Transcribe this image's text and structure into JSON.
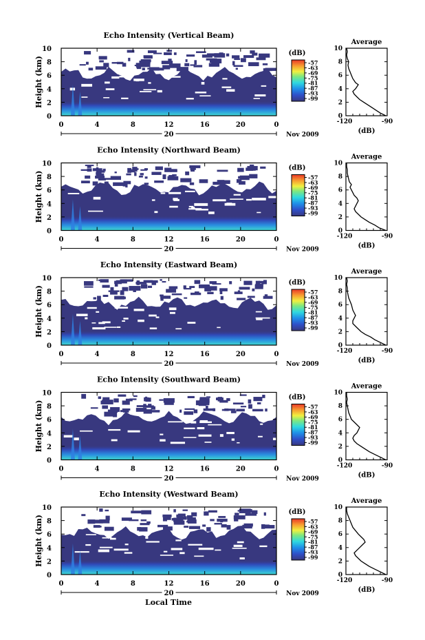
{
  "figure": {
    "xlabel": "Local Time",
    "colors": {
      "background": "#ffffff",
      "navy": "#38387f",
      "axis": "#000000"
    }
  },
  "chart_data": [
    {
      "type": "heatmap",
      "title": "Echo Intensity (Vertical Beam)",
      "ylabel": "Height (km)",
      "x_ticks": [
        "0",
        "4",
        "8",
        "12",
        "16",
        "20",
        "0"
      ],
      "xlim": [
        0,
        24
      ],
      "y_ticks": [
        "0",
        "2",
        "4",
        "6",
        "8",
        "10"
      ],
      "ylim": [
        0,
        10
      ],
      "date_day": "20",
      "date_label": "Nov 2009",
      "colorbar": {
        "unit": "(dB)",
        "ticks": [
          "-57",
          "-63",
          "-69",
          "-75",
          "-81",
          "-87",
          "-93",
          "-99"
        ]
      },
      "profile": {
        "title": "Average",
        "xlabel": "(dB)",
        "x_ticks": [
          "-120",
          "-90"
        ],
        "xlim": [
          -120,
          -90
        ],
        "y_ticks": [
          "0",
          "2",
          "4",
          "6",
          "8",
          "10"
        ],
        "ylim": [
          0,
          10
        ],
        "points": [
          [
            -91,
            0
          ],
          [
            -95,
            0.4
          ],
          [
            -98,
            0.8
          ],
          [
            -101,
            1.2
          ],
          [
            -104,
            1.6
          ],
          [
            -107,
            2.0
          ],
          [
            -110,
            2.4
          ],
          [
            -112,
            2.8
          ],
          [
            -114,
            3.2
          ],
          [
            -115,
            3.6
          ],
          [
            -113,
            4.0
          ],
          [
            -112,
            4.3
          ],
          [
            -111,
            4.6
          ],
          [
            -113,
            4.9
          ],
          [
            -114,
            5.2
          ],
          [
            -115,
            5.5
          ],
          [
            -116,
            6.0
          ],
          [
            -117,
            6.5
          ],
          [
            -118,
            7.0
          ],
          [
            -118.5,
            7.5
          ],
          [
            -118,
            8.0
          ],
          [
            -119,
            8.5
          ],
          [
            -119.5,
            9.0
          ],
          [
            -119,
            9.5
          ],
          [
            -119.5,
            10
          ]
        ]
      }
    },
    {
      "type": "heatmap",
      "title": "Echo Intensity (Northward Beam)",
      "ylabel": "Height (km)",
      "x_ticks": [
        "0",
        "4",
        "8",
        "12",
        "16",
        "20",
        "0"
      ],
      "xlim": [
        0,
        24
      ],
      "y_ticks": [
        "0",
        "2",
        "4",
        "6",
        "8",
        "10"
      ],
      "ylim": [
        0,
        10
      ],
      "date_day": "20",
      "date_label": "Nov 2009",
      "colorbar": {
        "unit": "(dB)",
        "ticks": [
          "-57",
          "-63",
          "-69",
          "-75",
          "-81",
          "-87",
          "-93",
          "-99"
        ]
      },
      "profile": {
        "title": "Average",
        "xlabel": "(dB)",
        "x_ticks": [
          "-120",
          "-90"
        ],
        "xlim": [
          -120,
          -90
        ],
        "y_ticks": [
          "0",
          "2",
          "4",
          "6",
          "8",
          "10"
        ],
        "ylim": [
          0,
          10
        ],
        "points": [
          [
            -91,
            0
          ],
          [
            -96,
            0.4
          ],
          [
            -99,
            0.8
          ],
          [
            -103,
            1.2
          ],
          [
            -106,
            1.6
          ],
          [
            -109,
            2.0
          ],
          [
            -111,
            2.4
          ],
          [
            -113,
            2.8
          ],
          [
            -114,
            3.2
          ],
          [
            -113,
            3.6
          ],
          [
            -112,
            4.0
          ],
          [
            -111,
            4.4
          ],
          [
            -112,
            4.8
          ],
          [
            -114,
            5.2
          ],
          [
            -115,
            5.6
          ],
          [
            -116,
            6.0
          ],
          [
            -117,
            6.4
          ],
          [
            -116,
            6.8
          ],
          [
            -117.5,
            7.2
          ],
          [
            -118,
            7.6
          ],
          [
            -118.5,
            8.0
          ],
          [
            -119,
            8.5
          ],
          [
            -119,
            9.0
          ],
          [
            -119.5,
            9.5
          ],
          [
            -119.5,
            10
          ]
        ]
      }
    },
    {
      "type": "heatmap",
      "title": "Echo Intensity (Eastward Beam)",
      "ylabel": "Height (km)",
      "x_ticks": [
        "0",
        "4",
        "8",
        "12",
        "16",
        "20",
        "0"
      ],
      "xlim": [
        0,
        24
      ],
      "y_ticks": [
        "0",
        "2",
        "4",
        "6",
        "8",
        "10"
      ],
      "ylim": [
        0,
        10
      ],
      "date_day": "20",
      "date_label": "Nov 2009",
      "colorbar": {
        "unit": "(dB)",
        "ticks": [
          "-57",
          "-63",
          "-69",
          "-75",
          "-81",
          "-87",
          "-93",
          "-99"
        ]
      },
      "profile": {
        "title": "Average",
        "xlabel": "(dB)",
        "x_ticks": [
          "-120",
          "-90"
        ],
        "xlim": [
          -120,
          -90
        ],
        "y_ticks": [
          "0",
          "2",
          "4",
          "6",
          "8",
          "10"
        ],
        "ylim": [
          0,
          10
        ],
        "points": [
          [
            -91,
            0
          ],
          [
            -95,
            0.4
          ],
          [
            -99,
            0.8
          ],
          [
            -102,
            1.2
          ],
          [
            -106,
            1.6
          ],
          [
            -109,
            2.0
          ],
          [
            -111,
            2.4
          ],
          [
            -113,
            2.8
          ],
          [
            -115,
            3.2
          ],
          [
            -115,
            3.6
          ],
          [
            -114,
            4.0
          ],
          [
            -113,
            4.4
          ],
          [
            -114,
            4.8
          ],
          [
            -115,
            5.2
          ],
          [
            -115.5,
            5.6
          ],
          [
            -116,
            6.0
          ],
          [
            -117,
            6.5
          ],
          [
            -118,
            7.0
          ],
          [
            -118.5,
            7.5
          ],
          [
            -119,
            8.0
          ],
          [
            -119,
            8.5
          ],
          [
            -119.5,
            9.0
          ],
          [
            -119,
            9.5
          ],
          [
            -119.5,
            10
          ]
        ]
      }
    },
    {
      "type": "heatmap",
      "title": "Echo Intensity (Southward Beam)",
      "ylabel": "Height (km)",
      "x_ticks": [
        "0",
        "4",
        "8",
        "12",
        "16",
        "20",
        "0"
      ],
      "xlim": [
        0,
        24
      ],
      "y_ticks": [
        "0",
        "2",
        "4",
        "6",
        "8",
        "10"
      ],
      "ylim": [
        0,
        10
      ],
      "date_day": "20",
      "date_label": "Nov 2009",
      "colorbar": {
        "unit": "(dB)",
        "ticks": [
          "-57",
          "-63",
          "-69",
          "-75",
          "-81",
          "-87",
          "-93",
          "-99"
        ]
      },
      "profile": {
        "title": "Average",
        "xlabel": "(dB)",
        "x_ticks": [
          "-120",
          "-90"
        ],
        "xlim": [
          -120,
          -90
        ],
        "y_ticks": [
          "0",
          "2",
          "4",
          "6",
          "8",
          "10"
        ],
        "ylim": [
          0,
          10
        ],
        "points": [
          [
            -91,
            0
          ],
          [
            -95,
            0.4
          ],
          [
            -99,
            0.8
          ],
          [
            -103,
            1.2
          ],
          [
            -106,
            1.6
          ],
          [
            -109,
            2.0
          ],
          [
            -112,
            2.4
          ],
          [
            -114,
            2.8
          ],
          [
            -115,
            3.2
          ],
          [
            -114,
            3.6
          ],
          [
            -112,
            4.0
          ],
          [
            -111,
            4.4
          ],
          [
            -110,
            4.8
          ],
          [
            -112,
            5.2
          ],
          [
            -114,
            5.6
          ],
          [
            -116,
            6.0
          ],
          [
            -117,
            6.5
          ],
          [
            -118,
            7.0
          ],
          [
            -118.5,
            7.5
          ],
          [
            -119,
            8.0
          ],
          [
            -119.5,
            8.5
          ],
          [
            -119,
            9.0
          ],
          [
            -119.5,
            9.5
          ],
          [
            -119.5,
            10
          ]
        ]
      }
    },
    {
      "type": "heatmap",
      "title": "Echo Intensity (Westward Beam)",
      "ylabel": "Height (km)",
      "x_ticks": [
        "0",
        "4",
        "8",
        "12",
        "16",
        "20",
        "0"
      ],
      "xlim": [
        0,
        24
      ],
      "y_ticks": [
        "0",
        "2",
        "4",
        "6",
        "8",
        "10"
      ],
      "ylim": [
        0,
        10
      ],
      "date_day": "20",
      "date_label": "Nov 2009",
      "colorbar": {
        "unit": "(dB)",
        "ticks": [
          "-57",
          "-63",
          "-69",
          "-75",
          "-81",
          "-87",
          "-93",
          "-99"
        ]
      },
      "profile": {
        "title": "Average",
        "xlabel": "(dB)",
        "x_ticks": [
          "-120",
          "-90"
        ],
        "xlim": [
          -120,
          -90
        ],
        "y_ticks": [
          "0",
          "2",
          "4",
          "6",
          "8",
          "10"
        ],
        "ylim": [
          0,
          10
        ],
        "points": [
          [
            -91,
            0
          ],
          [
            -95,
            0.4
          ],
          [
            -99,
            0.8
          ],
          [
            -103,
            1.2
          ],
          [
            -106,
            1.6
          ],
          [
            -109,
            2.0
          ],
          [
            -111,
            2.4
          ],
          [
            -113,
            2.8
          ],
          [
            -114,
            3.2
          ],
          [
            -112,
            3.6
          ],
          [
            -110,
            4.0
          ],
          [
            -108,
            4.4
          ],
          [
            -106,
            4.8
          ],
          [
            -107,
            5.2
          ],
          [
            -109,
            5.6
          ],
          [
            -111,
            6.0
          ],
          [
            -113,
            6.5
          ],
          [
            -115,
            7.0
          ],
          [
            -116,
            7.5
          ],
          [
            -117,
            8.0
          ],
          [
            -118,
            8.5
          ],
          [
            -119,
            9.0
          ],
          [
            -119.5,
            9.5
          ],
          [
            -119.5,
            10
          ]
        ]
      }
    }
  ]
}
